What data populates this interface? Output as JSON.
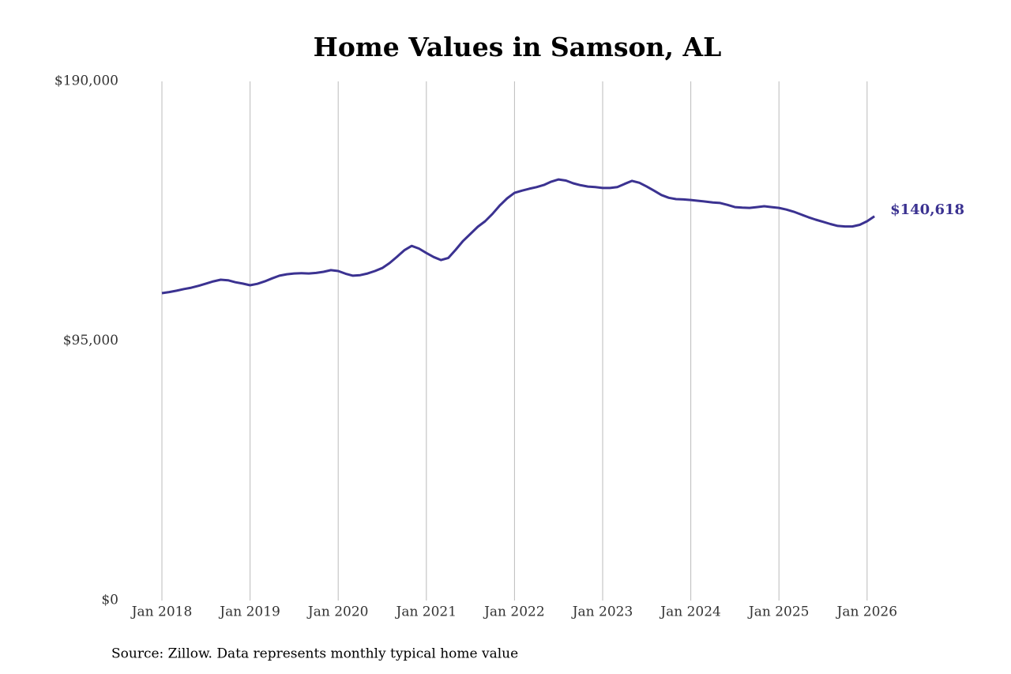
{
  "chart_data": {
    "type": "line",
    "title": "Home Values in Samson, AL",
    "source": "Source: Zillow. Data represents monthly typical home value",
    "x": [
      "2018-01",
      "2018-02",
      "2018-03",
      "2018-04",
      "2018-05",
      "2018-06",
      "2018-07",
      "2018-08",
      "2018-09",
      "2018-10",
      "2018-11",
      "2018-12",
      "2019-01",
      "2019-02",
      "2019-03",
      "2019-04",
      "2019-05",
      "2019-06",
      "2019-07",
      "2019-08",
      "2019-09",
      "2019-10",
      "2019-11",
      "2019-12",
      "2020-01",
      "2020-02",
      "2020-03",
      "2020-04",
      "2020-05",
      "2020-06",
      "2020-07",
      "2020-08",
      "2020-09",
      "2020-10",
      "2020-11",
      "2020-12",
      "2021-01",
      "2021-02",
      "2021-03",
      "2021-04",
      "2021-05",
      "2021-06",
      "2021-07",
      "2021-08",
      "2021-09",
      "2021-10",
      "2021-11",
      "2021-12",
      "2022-01",
      "2022-02",
      "2022-03",
      "2022-04",
      "2022-05",
      "2022-06",
      "2022-07",
      "2022-08",
      "2022-09",
      "2022-10",
      "2022-11",
      "2022-12",
      "2023-01",
      "2023-02",
      "2023-03",
      "2023-04",
      "2023-05",
      "2023-06",
      "2023-07",
      "2023-08",
      "2023-09",
      "2023-10",
      "2023-11",
      "2023-12",
      "2024-01",
      "2024-02",
      "2024-03",
      "2024-04",
      "2024-05",
      "2024-06",
      "2024-07",
      "2024-08",
      "2024-09",
      "2024-10",
      "2024-11",
      "2024-12",
      "2025-01",
      "2025-02",
      "2025-03",
      "2025-04",
      "2025-05",
      "2025-06",
      "2025-07",
      "2025-08",
      "2025-09",
      "2025-10",
      "2025-11",
      "2025-12",
      "2026-01",
      "2026-02"
    ],
    "series": [
      {
        "name": "Samson, AL",
        "color": "#3b3291",
        "values": [
          112500,
          112900,
          113400,
          114000,
          114500,
          115200,
          116000,
          116800,
          117400,
          117200,
          116500,
          116000,
          115400,
          115900,
          116800,
          117900,
          118900,
          119400,
          119700,
          119800,
          119700,
          119900,
          120300,
          120900,
          120600,
          119600,
          118900,
          119100,
          119700,
          120600,
          121700,
          123500,
          125800,
          128200,
          129800,
          128800,
          127200,
          125700,
          124600,
          125400,
          128400,
          131600,
          134200,
          136800,
          138800,
          141500,
          144600,
          147200,
          149200,
          150000,
          150700,
          151300,
          152100,
          153300,
          154100,
          153700,
          152700,
          152000,
          151500,
          151300,
          151000,
          151000,
          151300,
          152500,
          153600,
          152900,
          151500,
          150000,
          148400,
          147400,
          146900,
          146800,
          146600,
          146300,
          146000,
          145700,
          145500,
          144800,
          144000,
          143800,
          143700,
          144000,
          144300,
          144000,
          143700,
          143100,
          142300,
          141300,
          140300,
          139400,
          138600,
          137800,
          137100,
          136900,
          136900,
          137500,
          138800,
          140618
        ],
        "value_labels": [
          null,
          null,
          null,
          null,
          null,
          null,
          null,
          null,
          null,
          null,
          null,
          null,
          null,
          null,
          null,
          null,
          null,
          null,
          null,
          null,
          null,
          null,
          null,
          null,
          null,
          null,
          null,
          null,
          null,
          null,
          null,
          null,
          null,
          null,
          null,
          null,
          null,
          null,
          null,
          null,
          null,
          null,
          null,
          null,
          null,
          null,
          null,
          null,
          null,
          null,
          null,
          null,
          null,
          null,
          null,
          null,
          null,
          null,
          null,
          null,
          null,
          null,
          null,
          null,
          null,
          null,
          null,
          null,
          null,
          null,
          null,
          null,
          null,
          null,
          null,
          null,
          null,
          null,
          null,
          null,
          null,
          null,
          null,
          null,
          null,
          null,
          null,
          null,
          null,
          null,
          null,
          null,
          null,
          null,
          null,
          null,
          null,
          "$140,618"
        ]
      }
    ],
    "xticks": [
      {
        "value": "2018-01",
        "label": "Jan 2018"
      },
      {
        "value": "2019-01",
        "label": "Jan 2019"
      },
      {
        "value": "2020-01",
        "label": "Jan 2020"
      },
      {
        "value": "2021-01",
        "label": "Jan 2021"
      },
      {
        "value": "2022-01",
        "label": "Jan 2022"
      },
      {
        "value": "2023-01",
        "label": "Jan 2023"
      },
      {
        "value": "2024-01",
        "label": "Jan 2024"
      },
      {
        "value": "2025-01",
        "label": "Jan 2025"
      },
      {
        "value": "2026-01",
        "label": "Jan 2026"
      }
    ],
    "ylim": [
      0,
      190000
    ],
    "yticks": [
      {
        "value": 0,
        "label": "$0"
      },
      {
        "value": 95000,
        "label": "$95,000"
      },
      {
        "value": 190000,
        "label": "$190,000"
      }
    ],
    "grid": "x"
  }
}
